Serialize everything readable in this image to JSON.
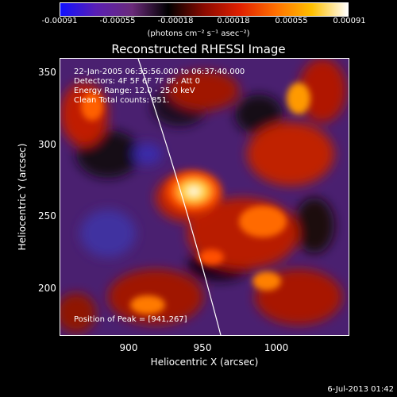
{
  "colorbar": {
    "tick_labels": [
      "-0.00091",
      "-0.00055",
      "-0.00018",
      "0.00018",
      "0.00055",
      "0.00091"
    ],
    "units_label": "(photons cm⁻² s⁻¹ asec⁻²)",
    "gradient_colors": [
      "#1010ff",
      "#5a1fb4",
      "#6a2a7a",
      "#000000",
      "#8a0a00",
      "#e02000",
      "#ff7000",
      "#ffc000",
      "#ffffff"
    ]
  },
  "title": "Reconstructed RHESSI Image",
  "info": {
    "time_range": "22-Jan-2005 06:35:56.000 to 06:37:40.000",
    "detectors": "Detectors: 4F 5F 6F 7F 8F, Att 0",
    "energy": "Energy Range: 12.0 - 25.0 keV",
    "clean": "Clean     Total counts: 851.",
    "peak": "Position of Peak = [941,267]"
  },
  "axes": {
    "xlabel": "Heliocentric X (arcsec)",
    "ylabel": "Heliocentric Y (arcsec)",
    "x_ticks": [
      "900",
      "950",
      "1000"
    ],
    "y_ticks": [
      "350",
      "300",
      "250",
      "200"
    ]
  },
  "footer": "6-Jul-2013 01:42"
}
